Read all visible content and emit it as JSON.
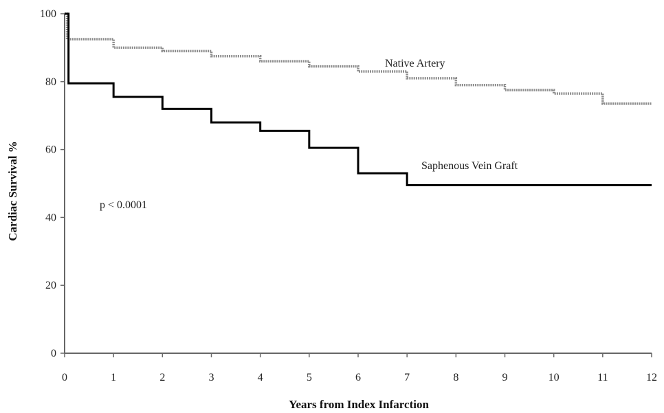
{
  "chart_data": {
    "type": "line",
    "step": true,
    "xlabel": "Years from Index Infarction",
    "ylabel": "Cardiac Survival %",
    "xlim": [
      0,
      12
    ],
    "ylim": [
      0,
      100
    ],
    "xticks": [
      "0",
      "1",
      "2",
      "3",
      "4",
      "5",
      "6",
      "7",
      "8",
      "9",
      "10",
      "11",
      "12"
    ],
    "yticks": [
      "0",
      "20",
      "40",
      "60",
      "80",
      "100"
    ],
    "grid": false,
    "legend": "none",
    "annotation": "p < 0.0001",
    "series": [
      {
        "name": "Native Artery",
        "color": "#8c8c8c",
        "style": "dotted",
        "x": [
          0,
          0.05,
          1,
          2,
          3,
          4,
          5,
          6,
          7,
          8,
          9,
          10,
          11,
          12
        ],
        "y": [
          100,
          92.5,
          90,
          89,
          87.5,
          86,
          84.5,
          83,
          81,
          79,
          77.5,
          76.5,
          73.5,
          73.5
        ]
      },
      {
        "name": "Saphenous Vein Graft",
        "color": "#000000",
        "style": "solid",
        "x": [
          0,
          0.08,
          1,
          2,
          3,
          4,
          5,
          6,
          7,
          12
        ],
        "y": [
          100,
          79.5,
          75.5,
          72,
          68,
          65.5,
          60.5,
          53,
          49.5,
          49.5
        ]
      }
    ]
  }
}
